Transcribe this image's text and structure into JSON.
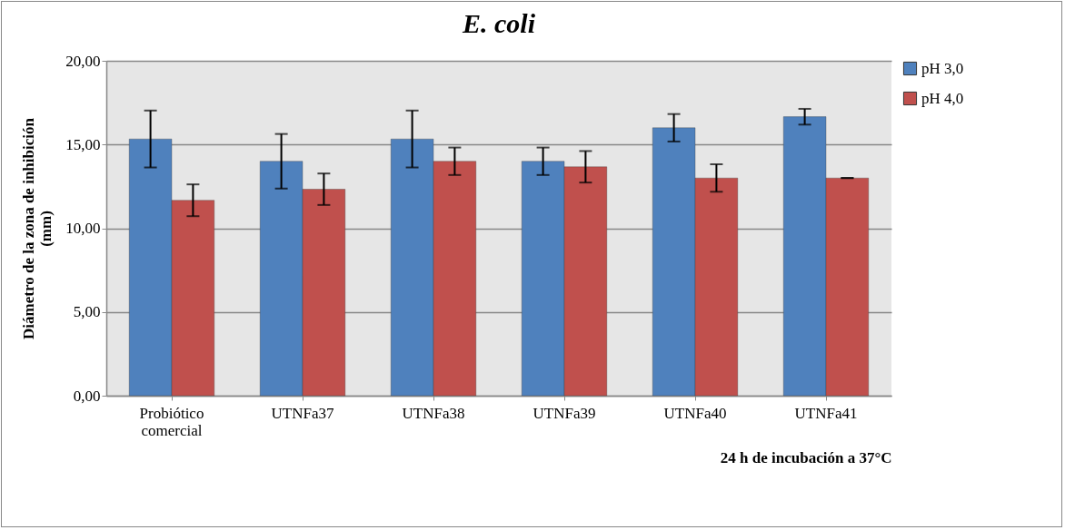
{
  "chart_data": {
    "type": "bar",
    "title": "E. coli",
    "xlabel": "24 h de incubación a 37°C",
    "ylabel": "Diámetro de la zona de inhibición (mm)",
    "categories": [
      "Probiótico comercial",
      "UTNFa37",
      "UTNFa38",
      "UTNFa39",
      "UTNFa40",
      "UTNFa41"
    ],
    "series": [
      {
        "name": "pH 3,0",
        "color": "#4f81bd",
        "values": [
          15.33,
          14.0,
          15.33,
          14.0,
          16.0,
          16.66
        ],
        "errors": [
          1.7,
          1.63,
          1.7,
          0.82,
          0.82,
          0.47
        ]
      },
      {
        "name": "pH 4,0",
        "color": "#c0504d",
        "values": [
          11.67,
          12.33,
          14.0,
          13.67,
          13.0,
          13.0
        ],
        "errors": [
          0.95,
          0.94,
          0.82,
          0.94,
          0.82,
          0
        ]
      }
    ],
    "ylim": [
      0,
      20
    ],
    "yticks": [
      {
        "value": 0,
        "label": "0,00"
      },
      {
        "value": 5,
        "label": "5,00"
      },
      {
        "value": 10,
        "label": "10,00"
      },
      {
        "value": 15,
        "label": "15,00"
      },
      {
        "value": 20,
        "label": "20,00"
      }
    ],
    "grid": "y",
    "legend": "right"
  }
}
